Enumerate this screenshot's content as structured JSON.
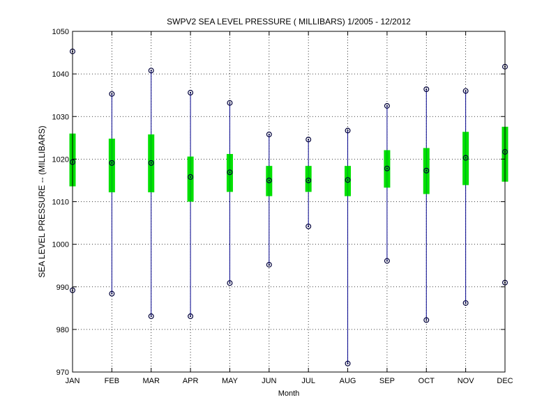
{
  "chart_data": {
    "type": "box",
    "title": "SWPV2  SEA LEVEL PRESSURE ( MILLIBARS) 1/2005 - 12/2012",
    "xlabel": "Month",
    "ylabel": "SEA LEVEL PRESSURE -- (MILLIBARS)",
    "ylim": [
      970,
      1050
    ],
    "yticks": [
      970,
      980,
      990,
      1000,
      1010,
      1020,
      1030,
      1040,
      1050
    ],
    "categories": [
      "JAN",
      "FEB",
      "MAR",
      "APR",
      "MAY",
      "JUN",
      "JUL",
      "AUG",
      "SEP",
      "OCT",
      "NOV",
      "DEC"
    ],
    "max": [
      1045.3,
      1035.3,
      1040.8,
      1035.6,
      1033.2,
      1025.8,
      1024.6,
      1026.7,
      1032.5,
      1036.4,
      1036.0,
      1041.7
    ],
    "upper": [
      1026.0,
      1024.8,
      1025.8,
      1020.6,
      1021.2,
      1018.4,
      1018.4,
      1018.4,
      1022.1,
      1022.6,
      1026.4,
      1027.6
    ],
    "mean": [
      1019.3,
      1019.1,
      1019.1,
      1015.8,
      1016.9,
      1015.0,
      1015.0,
      1015.1,
      1017.8,
      1017.3,
      1020.3,
      1021.7
    ],
    "lower": [
      1013.6,
      1012.2,
      1012.2,
      1010.0,
      1012.3,
      1011.3,
      1012.3,
      1011.3,
      1013.3,
      1011.8,
      1013.9,
      1014.7
    ],
    "min": [
      989.2,
      988.4,
      983.1,
      983.1,
      990.9,
      995.2,
      1004.2,
      972.0,
      996.1,
      982.2,
      986.2,
      991.0
    ],
    "grid": true,
    "colors": {
      "range_line": "#00008b",
      "box": "#00e000",
      "marker": "#00003a",
      "grid": "#000000"
    }
  }
}
